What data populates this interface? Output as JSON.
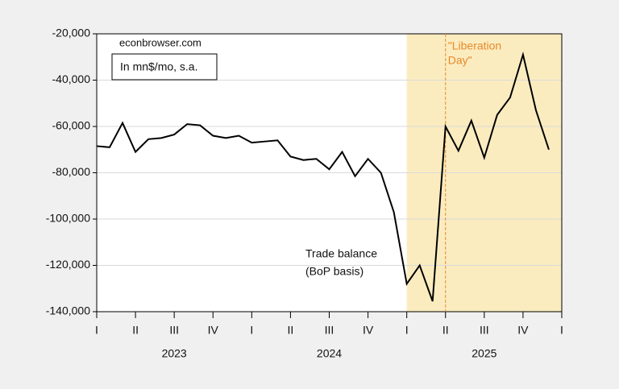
{
  "chart_data": {
    "type": "line",
    "x": [
      0,
      1,
      2,
      3,
      4,
      5,
      6,
      7,
      8,
      9,
      10,
      11,
      12,
      13,
      14,
      15,
      16,
      17,
      18,
      19,
      20,
      21,
      22,
      23,
      24,
      25,
      26,
      27,
      28,
      29,
      30,
      31,
      32,
      33,
      34,
      35
    ],
    "series": [
      {
        "name": "Trade balance (BoP basis)",
        "color": "#000000",
        "values": [
          -68500,
          -69000,
          -58500,
          -71000,
          -65500,
          -65000,
          -63500,
          -59000,
          -59500,
          -64000,
          -65000,
          -64000,
          -67000,
          -66500,
          -66000,
          -73000,
          -74500,
          -74000,
          -78500,
          -71000,
          -81500,
          -74000,
          -80000,
          -97000,
          -128000,
          -120000,
          -135500,
          -60000,
          -70500,
          -57500,
          -73500,
          -55000,
          -47500,
          -29000,
          -53000,
          -70000
        ]
      }
    ],
    "series_label": [
      "Trade balance",
      "(BoP basis)"
    ],
    "xlim": [
      0,
      36
    ],
    "xticks": [
      {
        "value": 0,
        "label": "I"
      },
      {
        "value": 3,
        "label": "II"
      },
      {
        "value": 6,
        "label": "III"
      },
      {
        "value": 9,
        "label": "IV"
      },
      {
        "value": 12,
        "label": "I"
      },
      {
        "value": 15,
        "label": "II"
      },
      {
        "value": 18,
        "label": "III"
      },
      {
        "value": 21,
        "label": "IV"
      },
      {
        "value": 24,
        "label": "I"
      },
      {
        "value": 27,
        "label": "II"
      },
      {
        "value": 30,
        "label": "III"
      },
      {
        "value": 33,
        "label": "IV"
      },
      {
        "value": 36,
        "label": "I"
      }
    ],
    "year_labels": [
      {
        "value": 6,
        "label": "2023"
      },
      {
        "value": 18,
        "label": "2024"
      },
      {
        "value": 30,
        "label": "2025"
      }
    ],
    "ylim": [
      -140000,
      -20000
    ],
    "yticks": [
      {
        "value": -140000,
        "label": "-140,000"
      },
      {
        "value": -120000,
        "label": "-120,000"
      },
      {
        "value": -100000,
        "label": "-100,000"
      },
      {
        "value": -80000,
        "label": "-80,000"
      },
      {
        "value": -60000,
        "label": "-60,000"
      },
      {
        "value": -40000,
        "label": "-40,000"
      },
      {
        "value": -20000,
        "label": "-20,000"
      }
    ],
    "grid": true,
    "shade": {
      "from": 24,
      "to": 36,
      "color": "#fbecc0"
    },
    "event": {
      "value": 27,
      "label": [
        "\"Liberation",
        "Day\""
      ],
      "color": "#e8892a"
    },
    "source": "econbrowser.com",
    "units_note": "In mn$/mo, s.a."
  }
}
